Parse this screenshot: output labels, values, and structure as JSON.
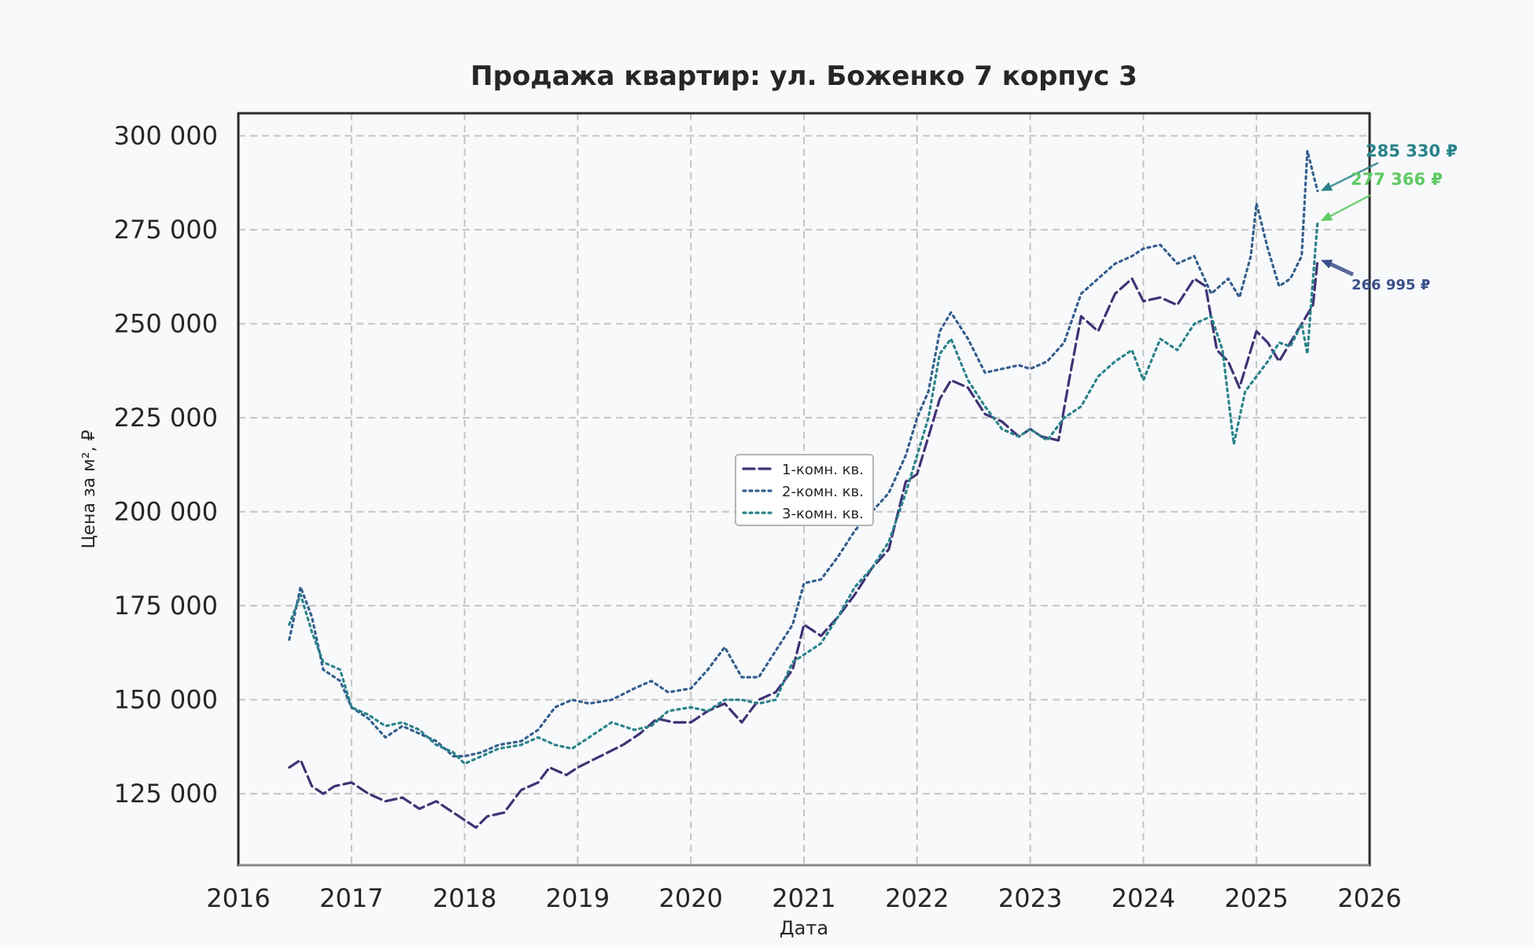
{
  "chart_data": {
    "type": "line",
    "title": "Продажа квартир: ул. Боженко 7 корпус 3",
    "xlabel": "Дата",
    "ylabel": "Цена за м², ₽",
    "xlim": [
      2016.0,
      2026.0
    ],
    "ylim": [
      106000,
      306000
    ],
    "x_ticks": [
      2016,
      2017,
      2018,
      2019,
      2020,
      2021,
      2022,
      2023,
      2024,
      2025,
      2026
    ],
    "x_tick_labels": [
      "2016",
      "2017",
      "2018",
      "2019",
      "2020",
      "2021",
      "2022",
      "2023",
      "2024",
      "2025",
      "2026"
    ],
    "y_ticks": [
      125000,
      150000,
      175000,
      200000,
      225000,
      250000,
      275000,
      300000
    ],
    "y_tick_labels": [
      "125 000",
      "150 000",
      "175 000",
      "200 000",
      "225 000",
      "250 000",
      "275 000",
      "300 000"
    ],
    "grid": true,
    "legend_position": "center",
    "series": [
      {
        "name": "1-комн. кв.",
        "color": "#3f3375",
        "dash": "dashed",
        "x": [
          2016.45,
          2016.55,
          2016.65,
          2016.75,
          2016.85,
          2017.0,
          2017.15,
          2017.3,
          2017.45,
          2017.6,
          2017.75,
          2017.85,
          2018.0,
          2018.1,
          2018.2,
          2018.35,
          2018.5,
          2018.65,
          2018.75,
          2018.9,
          2019.0,
          2019.2,
          2019.4,
          2019.55,
          2019.7,
          2019.85,
          2020.0,
          2020.15,
          2020.3,
          2020.45,
          2020.6,
          2020.75,
          2020.9,
          2021.0,
          2021.15,
          2021.3,
          2021.45,
          2021.6,
          2021.75,
          2021.9,
          2022.0,
          2022.1,
          2022.2,
          2022.3,
          2022.45,
          2022.6,
          2022.75,
          2022.9,
          2023.0,
          2023.1,
          2023.25,
          2023.35,
          2023.45,
          2023.6,
          2023.75,
          2023.9,
          2024.0,
          2024.15,
          2024.3,
          2024.45,
          2024.55,
          2024.65,
          2024.75,
          2024.85,
          2025.0,
          2025.1,
          2025.2,
          2025.3,
          2025.4,
          2025.5,
          2025.54
        ],
        "y": [
          132000,
          134000,
          127000,
          125000,
          127000,
          128000,
          125000,
          123000,
          124000,
          121000,
          123000,
          121000,
          118000,
          116000,
          119000,
          120000,
          126000,
          128000,
          132000,
          130000,
          132000,
          135000,
          138000,
          141000,
          145000,
          144000,
          144000,
          147000,
          149000,
          144000,
          150000,
          152000,
          158000,
          170000,
          167000,
          172000,
          178000,
          185000,
          190000,
          208000,
          210000,
          220000,
          230000,
          235000,
          233000,
          226000,
          224000,
          220000,
          222000,
          220000,
          219000,
          236000,
          252000,
          248000,
          258000,
          262000,
          256000,
          257000,
          255000,
          262000,
          260000,
          243000,
          240000,
          233000,
          248000,
          245000,
          240000,
          245000,
          250000,
          255000,
          266995
        ]
      },
      {
        "name": "2-комн. кв.",
        "color": "#355f8d",
        "dash": "dotted",
        "x": [
          2016.45,
          2016.55,
          2016.65,
          2016.75,
          2016.9,
          2017.0,
          2017.15,
          2017.3,
          2017.45,
          2017.6,
          2017.75,
          2017.9,
          2018.0,
          2018.15,
          2018.3,
          2018.5,
          2018.65,
          2018.8,
          2018.95,
          2019.1,
          2019.3,
          2019.5,
          2019.65,
          2019.8,
          2020.0,
          2020.15,
          2020.3,
          2020.45,
          2020.6,
          2020.75,
          2020.9,
          2021.0,
          2021.15,
          2021.3,
          2021.45,
          2021.6,
          2021.75,
          2021.9,
          2022.0,
          2022.1,
          2022.2,
          2022.3,
          2022.45,
          2022.6,
          2022.75,
          2022.9,
          2023.0,
          2023.15,
          2023.3,
          2023.45,
          2023.6,
          2023.75,
          2023.9,
          2024.0,
          2024.15,
          2024.3,
          2024.45,
          2024.6,
          2024.75,
          2024.85,
          2024.95,
          2025.0,
          2025.1,
          2025.2,
          2025.3,
          2025.4,
          2025.45,
          2025.5,
          2025.54
        ],
        "y": [
          166000,
          180000,
          172000,
          158000,
          155000,
          148000,
          145000,
          140000,
          143000,
          141000,
          139000,
          135000,
          135000,
          136000,
          138000,
          139000,
          142000,
          148000,
          150000,
          149000,
          150000,
          153000,
          155000,
          152000,
          153000,
          158000,
          164000,
          156000,
          156000,
          163000,
          170000,
          181000,
          182000,
          188000,
          195000,
          200000,
          205000,
          215000,
          225000,
          232000,
          248000,
          253000,
          246000,
          237000,
          238000,
          239000,
          238000,
          240000,
          245000,
          258000,
          262000,
          266000,
          268000,
          270000,
          271000,
          266000,
          268000,
          258000,
          262000,
          257000,
          268000,
          282000,
          270000,
          260000,
          262000,
          268000,
          296000,
          290000,
          285330
        ]
      },
      {
        "name": "3-комн. кв.",
        "color": "#2a8389",
        "dash": "dotted",
        "x": [
          2016.45,
          2016.55,
          2016.65,
          2016.75,
          2016.9,
          2017.0,
          2017.15,
          2017.3,
          2017.45,
          2017.6,
          2017.75,
          2017.9,
          2018.0,
          2018.15,
          2018.3,
          2018.5,
          2018.65,
          2018.8,
          2018.95,
          2019.1,
          2019.3,
          2019.5,
          2019.65,
          2019.8,
          2020.0,
          2020.15,
          2020.3,
          2020.45,
          2020.6,
          2020.75,
          2020.9,
          2021.0,
          2021.15,
          2021.3,
          2021.45,
          2021.6,
          2021.75,
          2021.9,
          2022.0,
          2022.1,
          2022.2,
          2022.3,
          2022.45,
          2022.6,
          2022.75,
          2022.9,
          2023.0,
          2023.15,
          2023.3,
          2023.45,
          2023.6,
          2023.75,
          2023.9,
          2024.0,
          2024.15,
          2024.3,
          2024.45,
          2024.6,
          2024.7,
          2024.8,
          2024.9,
          2025.0,
          2025.1,
          2025.2,
          2025.3,
          2025.4,
          2025.45,
          2025.5,
          2025.54
        ],
        "y": [
          170000,
          178000,
          168000,
          160000,
          158000,
          148000,
          146000,
          143000,
          144000,
          142000,
          138000,
          136000,
          133000,
          135000,
          137000,
          138000,
          140000,
          138000,
          137000,
          140000,
          144000,
          142000,
          143000,
          147000,
          148000,
          147000,
          150000,
          150000,
          149000,
          150000,
          160000,
          162000,
          165000,
          172000,
          180000,
          185000,
          192000,
          205000,
          215000,
          225000,
          242000,
          246000,
          235000,
          228000,
          222000,
          220000,
          222000,
          219000,
          225000,
          228000,
          236000,
          240000,
          243000,
          235000,
          246000,
          243000,
          250000,
          252000,
          243000,
          218000,
          232000,
          236000,
          240000,
          245000,
          244000,
          250000,
          242000,
          262000,
          277366
        ]
      }
    ],
    "annotations": [
      {
        "text": "285 330 ₽",
        "series": "2-комн. кв.",
        "color": "#2a8389"
      },
      {
        "text": "277 366 ₽",
        "series": "3-комн. кв.",
        "color": "#5ec962"
      },
      {
        "text": "266 995 ₽",
        "series": "1-комн. кв.",
        "color": "#3b4f8a"
      }
    ]
  }
}
